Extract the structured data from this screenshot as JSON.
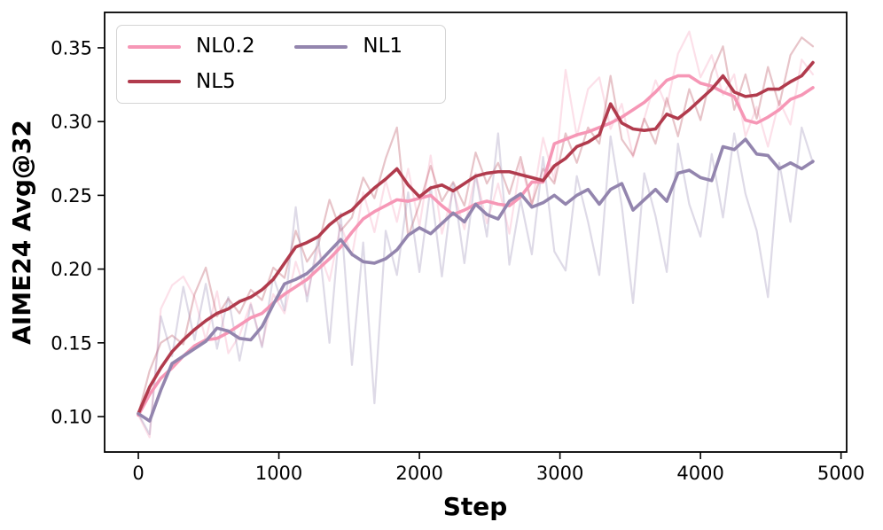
{
  "chart_data": {
    "type": "line",
    "title": "",
    "xlabel": "Step",
    "ylabel": "AIME24 Avg@32",
    "xlim": [
      -240,
      5040
    ],
    "ylim": [
      0.076,
      0.374
    ],
    "grid": false,
    "legend_position": "upper left",
    "x_ticks": [
      0,
      1000,
      2000,
      3000,
      4000,
      5000
    ],
    "x_tick_labels": [
      "0",
      "1000",
      "2000",
      "3000",
      "4000",
      "5000"
    ],
    "y_ticks": [
      0.1,
      0.15,
      0.2,
      0.25,
      0.3,
      0.35
    ],
    "y_tick_labels": [
      "0.10",
      "0.15",
      "0.20",
      "0.25",
      "0.30",
      "0.35"
    ],
    "x": [
      0,
      80,
      160,
      240,
      320,
      400,
      480,
      560,
      640,
      720,
      800,
      880,
      960,
      1040,
      1120,
      1200,
      1280,
      1360,
      1440,
      1520,
      1600,
      1680,
      1760,
      1840,
      1920,
      2000,
      2080,
      2160,
      2240,
      2320,
      2400,
      2480,
      2560,
      2640,
      2720,
      2800,
      2880,
      2960,
      3040,
      3120,
      3200,
      3280,
      3360,
      3440,
      3520,
      3600,
      3680,
      3760,
      3840,
      3920,
      4000,
      4080,
      4160,
      4240,
      4320,
      4400,
      4480,
      4560,
      4640,
      4720,
      4800
    ],
    "series": [
      {
        "name": "NL0.2",
        "color": "#f697b6",
        "raw_opacity": 0.3,
        "smoothed": [
          0.101,
          0.115,
          0.126,
          0.133,
          0.141,
          0.148,
          0.152,
          0.153,
          0.157,
          0.162,
          0.167,
          0.17,
          0.177,
          0.183,
          0.188,
          0.193,
          0.2,
          0.207,
          0.215,
          0.225,
          0.234,
          0.239,
          0.243,
          0.247,
          0.246,
          0.248,
          0.25,
          0.243,
          0.237,
          0.24,
          0.244,
          0.246,
          0.244,
          0.243,
          0.249,
          0.259,
          0.259,
          0.285,
          0.288,
          0.291,
          0.293,
          0.296,
          0.299,
          0.303,
          0.308,
          0.313,
          0.32,
          0.328,
          0.331,
          0.331,
          0.326,
          0.324,
          0.32,
          0.317,
          0.301,
          0.299,
          0.303,
          0.308,
          0.315,
          0.318,
          0.323
        ],
        "raw": [
          0.101,
          0.086,
          0.173,
          0.189,
          0.195,
          0.181,
          0.152,
          0.185,
          0.143,
          0.155,
          0.177,
          0.148,
          0.183,
          0.17,
          0.205,
          0.182,
          0.214,
          0.192,
          0.23,
          0.209,
          0.252,
          0.225,
          0.26,
          0.232,
          0.268,
          0.229,
          0.277,
          0.224,
          0.253,
          0.227,
          0.265,
          0.231,
          0.258,
          0.224,
          0.272,
          0.243,
          0.289,
          0.26,
          0.335,
          0.29,
          0.322,
          0.33,
          0.295,
          0.312,
          0.276,
          0.302,
          0.328,
          0.31,
          0.346,
          0.361,
          0.33,
          0.345,
          0.318,
          0.332,
          0.29,
          0.31,
          0.283,
          0.314,
          0.298,
          0.342,
          0.332
        ]
      },
      {
        "name": "NL5",
        "color": "#b13b4d",
        "raw_opacity": 0.3,
        "smoothed": [
          0.102,
          0.12,
          0.133,
          0.144,
          0.152,
          0.159,
          0.165,
          0.17,
          0.173,
          0.178,
          0.181,
          0.186,
          0.193,
          0.204,
          0.215,
          0.218,
          0.222,
          0.23,
          0.236,
          0.24,
          0.248,
          0.255,
          0.261,
          0.268,
          0.257,
          0.249,
          0.255,
          0.257,
          0.253,
          0.258,
          0.263,
          0.265,
          0.266,
          0.266,
          0.264,
          0.262,
          0.26,
          0.27,
          0.275,
          0.283,
          0.286,
          0.291,
          0.312,
          0.299,
          0.295,
          0.294,
          0.295,
          0.305,
          0.302,
          0.308,
          0.315,
          0.322,
          0.331,
          0.32,
          0.317,
          0.318,
          0.322,
          0.322,
          0.327,
          0.331,
          0.34
        ],
        "raw": [
          0.102,
          0.131,
          0.15,
          0.155,
          0.149,
          0.183,
          0.201,
          0.168,
          0.18,
          0.17,
          0.186,
          0.179,
          0.201,
          0.194,
          0.226,
          0.205,
          0.216,
          0.247,
          0.226,
          0.235,
          0.262,
          0.248,
          0.275,
          0.296,
          0.222,
          0.244,
          0.27,
          0.246,
          0.259,
          0.243,
          0.279,
          0.258,
          0.272,
          0.251,
          0.276,
          0.244,
          0.268,
          0.258,
          0.292,
          0.272,
          0.296,
          0.285,
          0.331,
          0.288,
          0.277,
          0.302,
          0.285,
          0.316,
          0.29,
          0.322,
          0.301,
          0.333,
          0.351,
          0.308,
          0.332,
          0.302,
          0.337,
          0.311,
          0.345,
          0.357,
          0.351
        ]
      },
      {
        "name": "NL1",
        "color": "#9385ae",
        "raw_opacity": 0.3,
        "smoothed": [
          0.102,
          0.097,
          0.118,
          0.136,
          0.141,
          0.146,
          0.151,
          0.16,
          0.158,
          0.153,
          0.152,
          0.161,
          0.176,
          0.19,
          0.193,
          0.197,
          0.204,
          0.212,
          0.22,
          0.21,
          0.205,
          0.204,
          0.207,
          0.213,
          0.223,
          0.228,
          0.224,
          0.231,
          0.238,
          0.232,
          0.244,
          0.237,
          0.234,
          0.246,
          0.251,
          0.242,
          0.245,
          0.25,
          0.244,
          0.25,
          0.254,
          0.244,
          0.254,
          0.258,
          0.24,
          0.247,
          0.254,
          0.246,
          0.265,
          0.267,
          0.262,
          0.26,
          0.283,
          0.281,
          0.288,
          0.278,
          0.277,
          0.268,
          0.272,
          0.268,
          0.273
        ],
        "raw": [
          0.102,
          0.088,
          0.168,
          0.141,
          0.188,
          0.152,
          0.19,
          0.146,
          0.181,
          0.138,
          0.176,
          0.147,
          0.195,
          0.172,
          0.242,
          0.178,
          0.222,
          0.15,
          0.238,
          0.135,
          0.218,
          0.109,
          0.226,
          0.196,
          0.252,
          0.198,
          0.256,
          0.195,
          0.258,
          0.204,
          0.264,
          0.222,
          0.292,
          0.203,
          0.247,
          0.21,
          0.276,
          0.212,
          0.199,
          0.263,
          0.232,
          0.196,
          0.29,
          0.243,
          0.177,
          0.265,
          0.236,
          0.198,
          0.285,
          0.244,
          0.222,
          0.278,
          0.235,
          0.292,
          0.251,
          0.226,
          0.181,
          0.272,
          0.232,
          0.296,
          0.272
        ]
      }
    ]
  },
  "legend": {
    "entries": [
      {
        "label": "NL0.2"
      },
      {
        "label": "NL5"
      },
      {
        "label": "NL1"
      }
    ]
  }
}
